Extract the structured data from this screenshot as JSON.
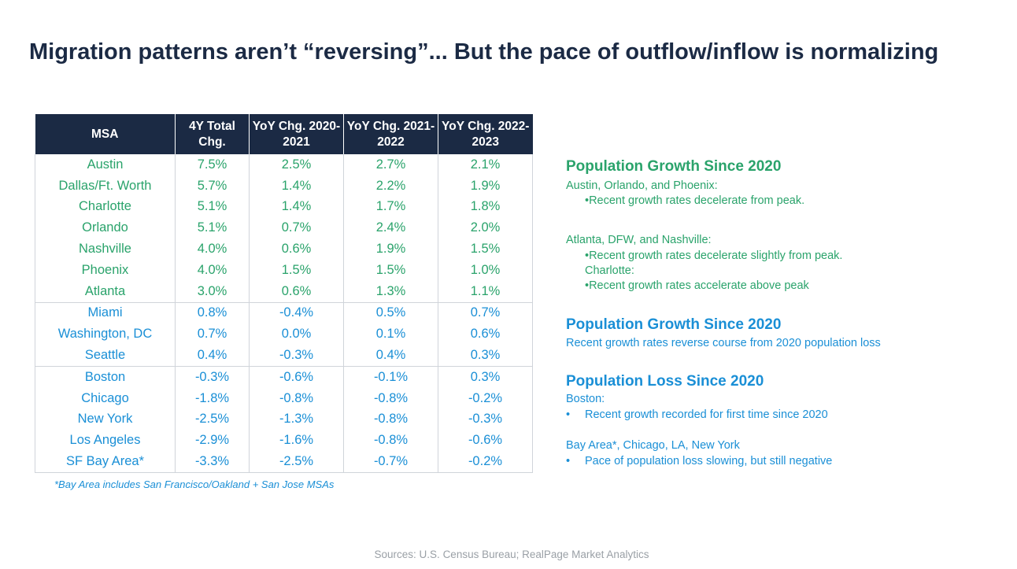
{
  "title": "Migration patterns aren’t “reversing”... But the pace of outflow/inflow is normalizing",
  "table": {
    "headers": [
      "MSA",
      "4Y Total Chg.",
      "YoY Chg. 2020-2021",
      "YoY Chg. 2021-2022",
      "YoY Chg. 2022-2023"
    ],
    "rows": [
      [
        "Austin",
        "7.5%",
        "2.5%",
        "2.7%",
        "2.1%"
      ],
      [
        "Dallas/Ft. Worth",
        "5.7%",
        "1.4%",
        "2.2%",
        "1.9%"
      ],
      [
        "Charlotte",
        "5.1%",
        "1.4%",
        "1.7%",
        "1.8%"
      ],
      [
        "Orlando",
        "5.1%",
        "0.7%",
        "2.4%",
        "2.0%"
      ],
      [
        "Nashville",
        "4.0%",
        "0.6%",
        "1.9%",
        "1.5%"
      ],
      [
        "Phoenix",
        "4.0%",
        "1.5%",
        "1.5%",
        "1.0%"
      ],
      [
        "Atlanta",
        "3.0%",
        "0.6%",
        "1.3%",
        "1.1%"
      ],
      [
        "Miami",
        "0.8%",
        "-0.4%",
        "0.5%",
        "0.7%"
      ],
      [
        "Washington, DC",
        "0.7%",
        "0.0%",
        "0.1%",
        "0.6%"
      ],
      [
        "Seattle",
        "0.4%",
        "-0.3%",
        "0.4%",
        "0.3%"
      ],
      [
        "Boston",
        "-0.3%",
        "-0.6%",
        "-0.1%",
        "0.3%"
      ],
      [
        "Chicago",
        "-1.8%",
        "-0.8%",
        "-0.8%",
        "-0.2%"
      ],
      [
        "New York",
        "-2.5%",
        "-1.3%",
        "-0.8%",
        "-0.3%"
      ],
      [
        "Los Angeles",
        "-2.9%",
        "-1.6%",
        "-0.8%",
        "-0.6%"
      ],
      [
        "SF Bay Area*",
        "-3.3%",
        "-2.5%",
        "-0.7%",
        "-0.2%"
      ]
    ]
  },
  "footnote": "*Bay Area includes San Francisco/Oakland + San Jose MSAs",
  "commentary": {
    "sec1_heading": "Population Growth Since 2020",
    "sec1_line1": "Austin, Orlando, and Phoenix:",
    "sec1_line2": "•Recent growth rates decelerate from peak.",
    "sec1_line3": "Atlanta, DFW, and Nashville:",
    "sec1_line4": "•Recent growth rates decelerate slightly from peak.",
    "sec1_line5": "Charlotte:",
    "sec1_line6": "•Recent growth rates accelerate above peak",
    "sec2_heading": "Population Growth Since 2020",
    "sec2_line1": "Recent growth rates reverse course from 2020 population loss",
    "sec3_heading": "Population Loss Since 2020",
    "sec3_line1": "Boston:",
    "bullet": "•",
    "sec3_line2": "Recent growth recorded for first time since 2020",
    "sec3_line3": "Bay Area*, Chicago, LA, New York",
    "sec3_line4": "Pace of population loss slowing, but still negative"
  },
  "source": "Sources: U.S. Census Bureau; RealPage Market Analytics",
  "colors": {
    "navy": "#1b2a44",
    "green": "#2aa36b",
    "blue": "#1a8fd6",
    "gray": "#9aa0a6"
  }
}
